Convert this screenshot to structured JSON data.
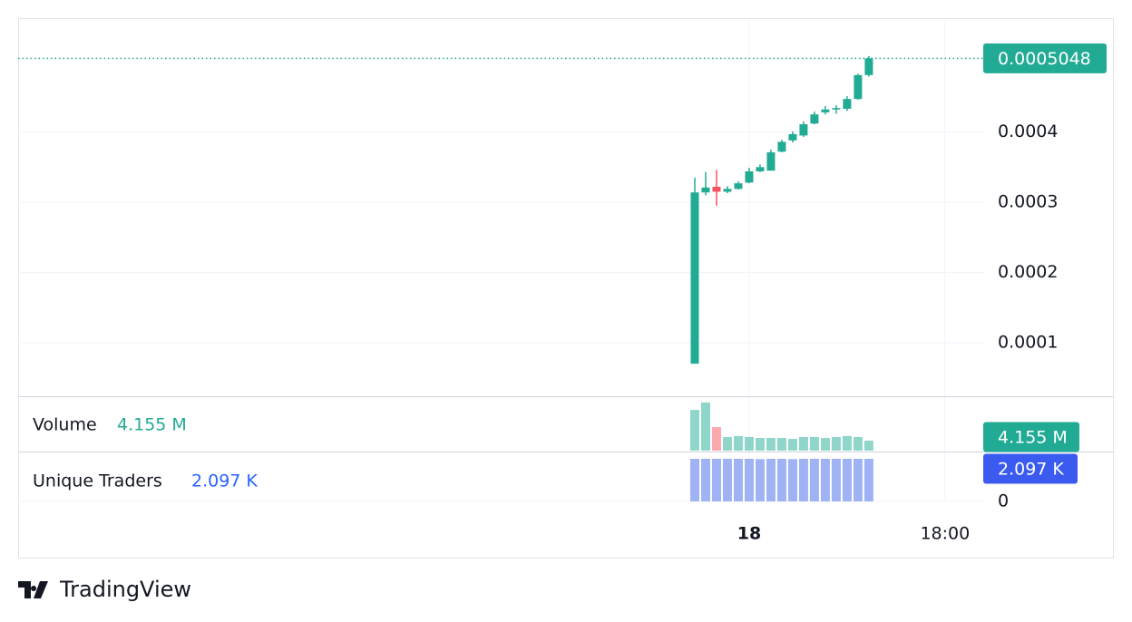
{
  "chart_data": {
    "type": "candlestick",
    "up_color": "#22ab94",
    "down_color": "#f7525f",
    "x": [
      19,
      20,
      21,
      22,
      23,
      24,
      25,
      26,
      27,
      28,
      29,
      30,
      31,
      32,
      33,
      34,
      35
    ],
    "open": [
      7.03e-05,
      0.000314,
      0.000322,
      0.000315,
      0.000319,
      0.000328,
      0.000344,
      0.000345,
      0.000372,
      0.000388,
      0.000395,
      0.000412,
      0.000428,
      0.000432,
      0.000433,
      0.000447,
      0.000481
    ],
    "high": [
      0.000335,
      0.000343,
      0.000346,
      0.000323,
      0.00033,
      0.000349,
      0.000354,
      0.000375,
      0.000389,
      0.000401,
      0.000415,
      0.000429,
      0.000437,
      0.000438,
      0.000451,
      0.000483,
      0.000508
    ],
    "low": [
      7.03e-05,
      0.00031,
      0.000295,
      0.000313,
      0.000318,
      0.000327,
      0.000343,
      0.000345,
      0.000371,
      0.000385,
      0.000393,
      0.000411,
      0.000425,
      0.000426,
      0.00043,
      0.000446,
      0.000479
    ],
    "close": [
      0.000314,
      0.000321,
      0.000315,
      0.000319,
      0.000327,
      0.000344,
      0.00035,
      0.000371,
      0.000386,
      0.000397,
      0.000411,
      0.000425,
      0.000432,
      0.000434,
      0.000447,
      0.000481,
      0.0005048
    ],
    "xlim": [
      -43.2,
      45.6
    ],
    "xticks": [
      {
        "value": 24,
        "label": "18"
      },
      {
        "value": 42,
        "label": "18:00"
      }
    ],
    "ylim": [
      2.4e-05,
      0.000562
    ],
    "yticks": [
      0.0001,
      0.0002,
      0.0003,
      0.0004
    ],
    "grid": true,
    "volume": {
      "name": "Volume",
      "color": "#22ab94",
      "values": [
        17000000,
        20100000,
        9800000,
        5700000,
        6100000,
        5700000,
        5300000,
        5300000,
        5300000,
        4900000,
        5700000,
        5700000,
        5300000,
        5700000,
        6100000,
        5700000,
        4155000
      ],
      "value_labels": [
        null,
        null,
        null,
        null,
        null,
        null,
        null,
        null,
        null,
        null,
        null,
        null,
        null,
        null,
        null,
        null,
        "4.155 M"
      ],
      "ylim": [
        0,
        22700000
      ]
    },
    "traders": {
      "name": "Unique Traders",
      "color": "#2962ff",
      "bar_color": "#9fb2f4",
      "values": [
        2097,
        2097,
        2097,
        2097,
        2097,
        2097,
        2080,
        2097,
        2097,
        2080,
        2097,
        2097,
        2097,
        2097,
        2097,
        2097,
        2097
      ],
      "value_labels": [
        null,
        null,
        null,
        null,
        null,
        null,
        null,
        null,
        null,
        null,
        null,
        null,
        null,
        null,
        null,
        null,
        "2.097 K"
      ],
      "ylim": [
        0,
        2409
      ],
      "yticks": [
        0
      ]
    }
  },
  "footer": {
    "brand": "TradingView"
  }
}
